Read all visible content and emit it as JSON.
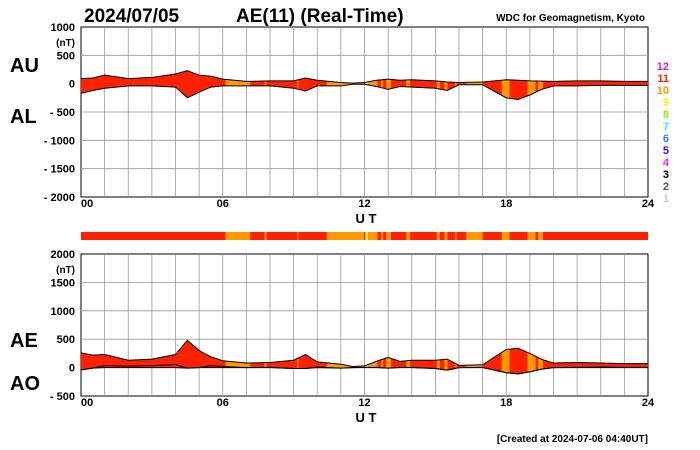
{
  "header": {
    "date": "2024/07/05",
    "title": "AE(11) (Real-Time)",
    "source": "WDC for Geomagnetism, Kyoto"
  },
  "footer": {
    "created": "[Created at 2024-07-06 04:40UT]"
  },
  "legend": {
    "labels": [
      "12",
      "11",
      "10",
      "9",
      "8",
      "7",
      "6",
      "5",
      "4",
      "3",
      "2",
      "1"
    ],
    "colors": [
      "#ff1a8c",
      "#ff2200",
      "#ff9900",
      "#ffee00",
      "#99ee00",
      "#33eedd",
      "#2288ff",
      "#3311ee",
      "#ee22ee",
      "#000000",
      "#555555",
      "#cccccc"
    ]
  },
  "chart_data": [
    {
      "type": "area",
      "title": "AU / AL",
      "series_labels": [
        "AU",
        "AL"
      ],
      "ylabel_unit": "(nT)",
      "xlabel": "U T",
      "xlim": [
        0,
        24
      ],
      "ylim": [
        -2000,
        1000
      ],
      "yticks": [
        1000,
        500,
        0,
        -500,
        -1000,
        -1500,
        -2000
      ],
      "ytick_labels": [
        "1000",
        "500",
        "0",
        "- 500",
        "- 1000",
        "- 1500",
        "- 2000"
      ],
      "xticks": [
        0,
        6,
        12,
        18,
        24
      ],
      "xtick_labels": [
        "00",
        "06",
        "12",
        "18",
        "24"
      ],
      "grid": true
    },
    {
      "type": "area",
      "title": "AE / AO",
      "series_labels": [
        "AE",
        "AO"
      ],
      "ylabel_unit": "(nT)",
      "xlabel": "U T",
      "xlim": [
        0,
        24
      ],
      "ylim": [
        -500,
        2000
      ],
      "yticks": [
        2000,
        1500,
        1000,
        500,
        0,
        -500
      ],
      "ytick_labels": [
        "2000",
        "1500",
        "1000",
        "500",
        "0",
        "- 500"
      ],
      "xticks": [
        0,
        6,
        12,
        18,
        24
      ],
      "xtick_labels": [
        "00",
        "06",
        "12",
        "18",
        "24"
      ],
      "grid": true
    }
  ],
  "series": {
    "x": [
      0,
      0.5,
      1,
      1.5,
      2,
      3,
      4,
      4.5,
      5,
      5.5,
      6,
      7,
      8,
      9,
      9.5,
      10,
      11,
      11.5,
      12,
      12.5,
      13,
      13.5,
      14,
      15,
      15.5,
      16,
      17,
      18,
      18.5,
      19,
      19.5,
      20,
      21,
      22,
      23,
      24
    ],
    "AU": [
      90,
      100,
      150,
      120,
      90,
      110,
      170,
      230,
      150,
      130,
      80,
      40,
      50,
      50,
      100,
      60,
      20,
      10,
      20,
      60,
      80,
      60,
      70,
      50,
      30,
      20,
      30,
      70,
      60,
      50,
      45,
      40,
      50,
      50,
      40,
      40
    ],
    "AL": [
      -170,
      -120,
      -80,
      -60,
      -40,
      -40,
      -60,
      -250,
      -150,
      -60,
      -40,
      -40,
      -40,
      -80,
      -130,
      -40,
      -40,
      -10,
      -10,
      -50,
      -100,
      -50,
      -60,
      -80,
      -120,
      -20,
      -20,
      -250,
      -280,
      -200,
      -100,
      -40,
      -40,
      -30,
      -30,
      -30
    ]
  },
  "station_count_segments": {
    "default": 11,
    "segments": [
      {
        "from": 6.12,
        "to": 7.16,
        "n": 10
      },
      {
        "from": 7.77,
        "to": 7.85,
        "n": 10
      },
      {
        "from": 9.15,
        "to": 9.2,
        "n": 10
      },
      {
        "from": 10.4,
        "to": 11.98,
        "n": 10
      },
      {
        "from": 12.03,
        "to": 12.15,
        "n": 9
      },
      {
        "from": 12.15,
        "to": 12.55,
        "n": 10
      },
      {
        "from": 12.71,
        "to": 12.79,
        "n": 10
      },
      {
        "from": 12.92,
        "to": 13.12,
        "n": 10
      },
      {
        "from": 13.77,
        "to": 13.93,
        "n": 10
      },
      {
        "from": 15.06,
        "to": 15.19,
        "n": 10
      },
      {
        "from": 15.38,
        "to": 15.51,
        "n": 10
      },
      {
        "from": 15.84,
        "to": 15.9,
        "n": 10
      },
      {
        "from": 16.3,
        "to": 17.0,
        "n": 10
      },
      {
        "from": 17.81,
        "to": 18.14,
        "n": 10
      },
      {
        "from": 18.9,
        "to": 19.24,
        "n": 10
      },
      {
        "from": 19.35,
        "to": 19.55,
        "n": 10
      }
    ]
  }
}
